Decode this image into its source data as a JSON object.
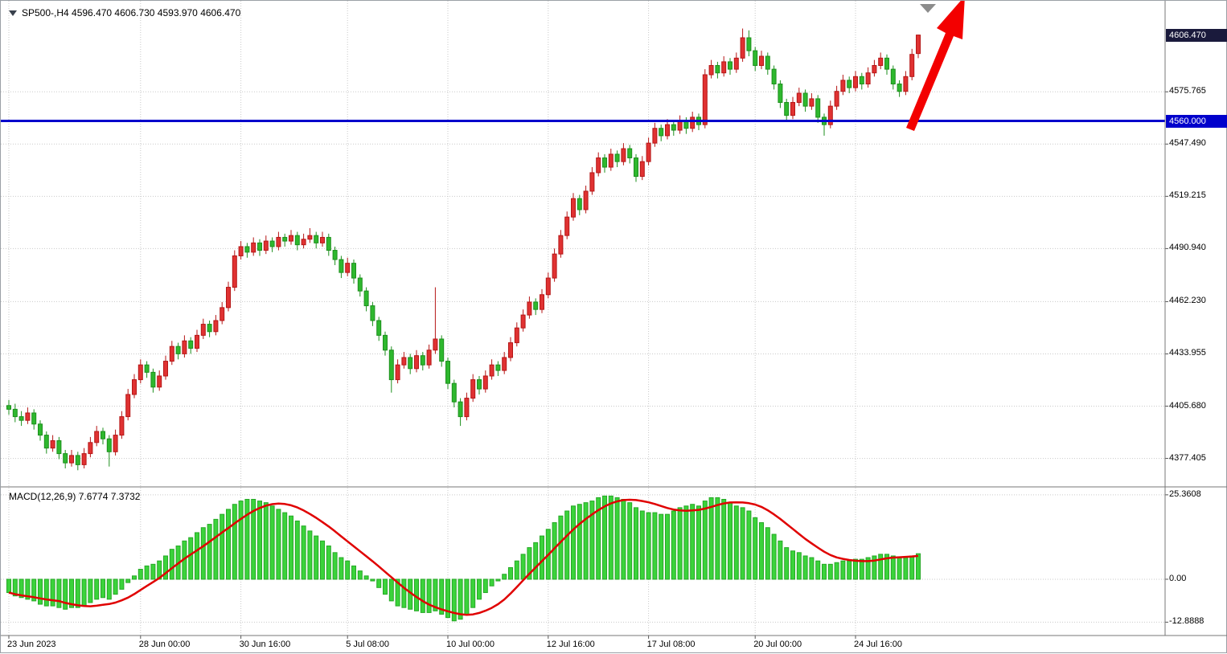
{
  "legend": {
    "symbol_text": "SP500-,H4 4596.470 4606.730 4593.970 4606.470",
    "macd_text": "MACD(12,26,9) 7.6774 7.3732"
  },
  "colors": {
    "up_candle": "#e03232",
    "up_border": "#b51616",
    "down_candle": "#2eb82e",
    "down_border": "#1d8f1d",
    "macd_histogram": "#3bd33b",
    "macd_border": "#25a825",
    "macd_signal": "#e00000",
    "hline": "#0000cc",
    "current_badge_bg": "#1a1a3c",
    "hline_badge_bg": "#0000cc",
    "grid": "#c9c9c9",
    "arrow": "#f30000",
    "marker": "#8c8c8c"
  },
  "chart_data": {
    "type": "candlestick",
    "title": "SP500-,H4",
    "timeframe": "H4",
    "current_ohlc": {
      "open": 4596.47,
      "high": 4606.73,
      "low": 4593.97,
      "close": 4606.47
    },
    "price_range": {
      "top": 4625.0,
      "bottom": 4362.0
    },
    "price_axis": {
      "current_price_label": "4606.470",
      "hline_label": "4560.000",
      "labels": [
        {
          "text": "4575.765",
          "value": 4575.765
        },
        {
          "text": "4547.490",
          "value": 4547.49
        },
        {
          "text": "4519.215",
          "value": 4519.215
        },
        {
          "text": "4490.940",
          "value": 4490.94
        },
        {
          "text": "4462.230",
          "value": 4462.23
        },
        {
          "text": "4433.955",
          "value": 4433.955
        },
        {
          "text": "4405.680",
          "value": 4405.68
        },
        {
          "text": "4377.405",
          "value": 4377.405
        }
      ]
    },
    "hline": {
      "value": 4560.0
    },
    "time_axis": {
      "ticks": [
        {
          "label": "23 Jun 2023",
          "index": 0
        },
        {
          "label": "28 Jun 00:00",
          "index": 21
        },
        {
          "label": "30 Jun 16:00",
          "index": 37
        },
        {
          "label": "5 Jul 08:00",
          "index": 54
        },
        {
          "label": "10 Jul 00:00",
          "index": 70
        },
        {
          "label": "12 Jul 16:00",
          "index": 86
        },
        {
          "label": "17 Jul 08:00",
          "index": 102
        },
        {
          "label": "20 Jul 00:00",
          "index": 119
        },
        {
          "label": "24 Jul 16:00",
          "index": 135
        }
      ]
    },
    "candles": [
      [
        4406,
        4409,
        4401,
        4404
      ],
      [
        4404,
        4407,
        4397,
        4400
      ],
      [
        4400,
        4403,
        4395,
        4398
      ],
      [
        4398,
        4405,
        4396,
        4402
      ],
      [
        4402,
        4404,
        4393,
        4396
      ],
      [
        4396,
        4398,
        4387,
        4390
      ],
      [
        4390,
        4392,
        4380,
        4383
      ],
      [
        4383,
        4390,
        4381,
        4387
      ],
      [
        4387,
        4389,
        4377,
        4380
      ],
      [
        4380,
        4382,
        4372,
        4375
      ],
      [
        4375,
        4382,
        4373,
        4379
      ],
      [
        4379,
        4381,
        4371,
        4374
      ],
      [
        4374,
        4383,
        4372,
        4380
      ],
      [
        4380,
        4389,
        4378,
        4386
      ],
      [
        4386,
        4395,
        4384,
        4392
      ],
      [
        4392,
        4394,
        4385,
        4388
      ],
      [
        4388,
        4390,
        4373,
        4381
      ],
      [
        4381,
        4393,
        4379,
        4390
      ],
      [
        4390,
        4403,
        4388,
        4400
      ],
      [
        4400,
        4415,
        4398,
        4412
      ],
      [
        4412,
        4423,
        4410,
        4420
      ],
      [
        4420,
        4431,
        4418,
        4428
      ],
      [
        4428,
        4430,
        4421,
        4424
      ],
      [
        4424,
        4426,
        4413,
        4416
      ],
      [
        4416,
        4425,
        4414,
        4422
      ],
      [
        4422,
        4433,
        4420,
        4430
      ],
      [
        4430,
        4441,
        4428,
        4438
      ],
      [
        4438,
        4440,
        4431,
        4434
      ],
      [
        4434,
        4444,
        4432,
        4441
      ],
      [
        4441,
        4443,
        4434,
        4437
      ],
      [
        4437,
        4447,
        4435,
        4444
      ],
      [
        4444,
        4453,
        4442,
        4450
      ],
      [
        4450,
        4452,
        4443,
        4446
      ],
      [
        4446,
        4455,
        4444,
        4452
      ],
      [
        4452,
        4462,
        4450,
        4459
      ],
      [
        4459,
        4473,
        4457,
        4470
      ],
      [
        4470,
        4490,
        4468,
        4487
      ],
      [
        4487,
        4495,
        4485,
        4492
      ],
      [
        4492,
        4494,
        4486,
        4489
      ],
      [
        4489,
        4497,
        4487,
        4494
      ],
      [
        4494,
        4496,
        4487,
        4490
      ],
      [
        4490,
        4498,
        4488,
        4495
      ],
      [
        4495,
        4497,
        4489,
        4492
      ],
      [
        4492,
        4500,
        4490,
        4497
      ],
      [
        4497,
        4499,
        4492,
        4495
      ],
      [
        4495,
        4501,
        4493,
        4498
      ],
      [
        4498,
        4500,
        4490,
        4493
      ],
      [
        4493,
        4499,
        4491,
        4496
      ],
      [
        4496,
        4502,
        4494,
        4498
      ],
      [
        4498,
        4500,
        4491,
        4494
      ],
      [
        4494,
        4500,
        4492,
        4497
      ],
      [
        4497,
        4499,
        4487,
        4490
      ],
      [
        4490,
        4492,
        4482,
        4485
      ],
      [
        4485,
        4487,
        4475,
        4478
      ],
      [
        4478,
        4486,
        4476,
        4483
      ],
      [
        4483,
        4485,
        4472,
        4475
      ],
      [
        4475,
        4477,
        4465,
        4468
      ],
      [
        4468,
        4470,
        4457,
        4460
      ],
      [
        4460,
        4462,
        4449,
        4452
      ],
      [
        4452,
        4454,
        4441,
        4444
      ],
      [
        4444,
        4446,
        4433,
        4436
      ],
      [
        4436,
        4438,
        4413,
        4420
      ],
      [
        4420,
        4431,
        4418,
        4428
      ],
      [
        4428,
        4435,
        4426,
        4432
      ],
      [
        4432,
        4434,
        4423,
        4426
      ],
      [
        4426,
        4436,
        4424,
        4433
      ],
      [
        4433,
        4435,
        4425,
        4428
      ],
      [
        4428,
        4439,
        4426,
        4436
      ],
      [
        4436,
        4470,
        4434,
        4442
      ],
      [
        4442,
        4444,
        4427,
        4430
      ],
      [
        4430,
        4432,
        4415,
        4418
      ],
      [
        4418,
        4420,
        4405,
        4408
      ],
      [
        4408,
        4410,
        4395,
        4400
      ],
      [
        4400,
        4413,
        4398,
        4410
      ],
      [
        4410,
        4423,
        4408,
        4420
      ],
      [
        4420,
        4422,
        4412,
        4415
      ],
      [
        4415,
        4425,
        4413,
        4422
      ],
      [
        4422,
        4431,
        4420,
        4428
      ],
      [
        4428,
        4430,
        4422,
        4425
      ],
      [
        4425,
        4435,
        4423,
        4432
      ],
      [
        4432,
        4443,
        4430,
        4440
      ],
      [
        4440,
        4451,
        4438,
        4448
      ],
      [
        4448,
        4458,
        4446,
        4455
      ],
      [
        4455,
        4465,
        4453,
        4462
      ],
      [
        4462,
        4464,
        4455,
        4458
      ],
      [
        4458,
        4469,
        4456,
        4466
      ],
      [
        4466,
        4478,
        4464,
        4475
      ],
      [
        4475,
        4491,
        4473,
        4488
      ],
      [
        4488,
        4501,
        4486,
        4498
      ],
      [
        4498,
        4511,
        4496,
        4508
      ],
      [
        4508,
        4521,
        4506,
        4518
      ],
      [
        4518,
        4520,
        4509,
        4512
      ],
      [
        4512,
        4525,
        4510,
        4522
      ],
      [
        4522,
        4535,
        4520,
        4532
      ],
      [
        4532,
        4543,
        4530,
        4540
      ],
      [
        4540,
        4542,
        4532,
        4535
      ],
      [
        4535,
        4545,
        4533,
        4542
      ],
      [
        4542,
        4544,
        4535,
        4538
      ],
      [
        4538,
        4548,
        4536,
        4545
      ],
      [
        4545,
        4547,
        4537,
        4540
      ],
      [
        4540,
        4542,
        4527,
        4530
      ],
      [
        4530,
        4541,
        4528,
        4538
      ],
      [
        4538,
        4551,
        4536,
        4548
      ],
      [
        4548,
        4559,
        4546,
        4556
      ],
      [
        4556,
        4558,
        4549,
        4552
      ],
      [
        4552,
        4561,
        4550,
        4558
      ],
      [
        4558,
        4560,
        4552,
        4555
      ],
      [
        4555,
        4563,
        4553,
        4560
      ],
      [
        4560,
        4562,
        4553,
        4556
      ],
      [
        4556,
        4565,
        4554,
        4562
      ],
      [
        4562,
        4564,
        4555,
        4558
      ],
      [
        4558,
        4588,
        4556,
        4585
      ],
      [
        4585,
        4593,
        4583,
        4590
      ],
      [
        4590,
        4592,
        4583,
        4586
      ],
      [
        4586,
        4595,
        4584,
        4592
      ],
      [
        4592,
        4594,
        4585,
        4588
      ],
      [
        4588,
        4597,
        4586,
        4594
      ],
      [
        4594,
        4610,
        4592,
        4605
      ],
      [
        4605,
        4609,
        4595,
        4598
      ],
      [
        4598,
        4600,
        4587,
        4590
      ],
      [
        4590,
        4598,
        4588,
        4595
      ],
      [
        4595,
        4597,
        4585,
        4588
      ],
      [
        4588,
        4590,
        4577,
        4580
      ],
      [
        4580,
        4582,
        4567,
        4570
      ],
      [
        4570,
        4572,
        4560,
        4563
      ],
      [
        4563,
        4573,
        4561,
        4570
      ],
      [
        4570,
        4578,
        4568,
        4575
      ],
      [
        4575,
        4577,
        4565,
        4568
      ],
      [
        4568,
        4575,
        4566,
        4572
      ],
      [
        4572,
        4574,
        4559,
        4562
      ],
      [
        4562,
        4564,
        4552,
        4558
      ],
      [
        4558,
        4571,
        4556,
        4568
      ],
      [
        4568,
        4579,
        4566,
        4576
      ],
      [
        4576,
        4585,
        4574,
        4582
      ],
      [
        4582,
        4584,
        4575,
        4578
      ],
      [
        4578,
        4587,
        4576,
        4584
      ],
      [
        4584,
        4586,
        4577,
        4580
      ],
      [
        4580,
        4589,
        4578,
        4586
      ],
      [
        4586,
        4593,
        4584,
        4590
      ],
      [
        4590,
        4597,
        4588,
        4594
      ],
      [
        4594,
        4596,
        4585,
        4588
      ],
      [
        4588,
        4590,
        4577,
        4580
      ],
      [
        4580,
        4582,
        4573,
        4576
      ],
      [
        4576,
        4587,
        4574,
        4584
      ],
      [
        4584,
        4599,
        4582,
        4596
      ],
      [
        4596.47,
        4606.73,
        4593.97,
        4606.47
      ]
    ],
    "macd": {
      "params": "MACD(12,26,9)",
      "main_value": 7.6774,
      "signal_value": 7.3732,
      "ylim": [
        -16.9,
        27.5
      ],
      "axis": [
        {
          "text": "25.3608",
          "value": 25.3608
        },
        {
          "text": "0.00",
          "value": 0
        },
        {
          "text": "-12.8888",
          "value": -12.8888
        }
      ],
      "values": [
        -4,
        -5,
        -5.5,
        -6,
        -6.5,
        -7.5,
        -8,
        -8,
        -8.5,
        -9,
        -8.5,
        -8.5,
        -8,
        -7,
        -6,
        -5.5,
        -6,
        -4.5,
        -3,
        -1,
        1,
        3,
        4,
        4.5,
        5.5,
        7,
        9,
        10,
        11.5,
        12.5,
        14,
        15.5,
        16.5,
        18,
        19.5,
        21,
        22.5,
        23.5,
        24,
        24,
        23.5,
        23,
        22,
        21,
        20,
        19,
        17.5,
        16,
        14.5,
        13,
        11.5,
        10,
        8,
        6.5,
        5.5,
        4,
        2.5,
        1,
        -0.5,
        -2.5,
        -4.5,
        -6.5,
        -8,
        -8.5,
        -9,
        -9.5,
        -10,
        -10,
        -9.5,
        -10.5,
        -11.5,
        -12.5,
        -12,
        -10.5,
        -8.5,
        -6,
        -4,
        -2,
        -0.5,
        1.5,
        3.5,
        5.5,
        7.5,
        9.5,
        11,
        13,
        15,
        17,
        19,
        20.5,
        22,
        22.5,
        23,
        23.5,
        24.5,
        25,
        25,
        24.5,
        24,
        23,
        21.5,
        20.5,
        20,
        20,
        19.5,
        19.5,
        20.5,
        21.5,
        22,
        22.5,
        22,
        23.5,
        24.5,
        24.5,
        24,
        23,
        22,
        21.5,
        20.5,
        18.5,
        17,
        15.5,
        13.5,
        11.5,
        9.5,
        8.5,
        8,
        7,
        6.5,
        5.5,
        4.5,
        4.5,
        5,
        5.5,
        5.5,
        6,
        6,
        6.5,
        7,
        7.5,
        7.5,
        7,
        6.5,
        6.5,
        7,
        7.6774
      ]
    },
    "annotations": [
      {
        "type": "arrow-up",
        "name": "trend-arrow"
      },
      {
        "type": "triangle-marker",
        "name": "top-marker"
      }
    ]
  }
}
